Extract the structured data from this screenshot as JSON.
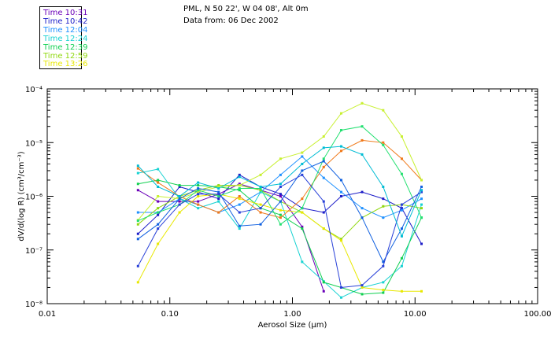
{
  "header": {
    "station": "PML, N 50 22', W 04 08', Alt 0m",
    "date": "Data from: 06 Dec 2002"
  },
  "chart_data": {
    "type": "line",
    "title": "",
    "xlabel": "Aerosol Size (μm)",
    "ylabel": "dV/d(log R) (cm³/cm⁻³)",
    "xscale": "log",
    "yscale": "log",
    "xlim": [
      0.01,
      100
    ],
    "ylim": [
      1e-08,
      0.0001
    ],
    "x_tick_labels": [
      "0.01",
      "0.10",
      "1.00",
      "10.00",
      "100.00"
    ],
    "y_tick_labels": [
      "10⁻⁸",
      "10⁻⁷",
      "10⁻⁶",
      "10⁻⁵",
      "10⁻⁴"
    ],
    "legend_position": "top-left",
    "grid": false,
    "series": [
      {
        "name": "Time 10:31",
        "color": "#6a00b8",
        "x": [
          0.055,
          0.08,
          0.12,
          0.17,
          0.25,
          0.37,
          0.55,
          0.8,
          1.2,
          1.8
        ],
        "y": [
          1.3e-06,
          8e-07,
          8e-07,
          8e-07,
          1.1e-06,
          1.7e-06,
          1.3e-06,
          1e-06,
          2.7e-07,
          1.7e-08
        ]
      },
      {
        "name": "Time 10:42",
        "color": "#1c1cc8",
        "x": [
          0.055,
          0.08,
          0.12,
          0.17,
          0.25,
          0.37,
          0.55,
          0.8,
          1.2,
          1.8,
          2.5,
          3.7,
          5.5,
          7.8,
          11.3
        ],
        "y": [
          2e-07,
          4.5e-07,
          1.5e-06,
          1.2e-06,
          9e-07,
          2.5e-06,
          1.5e-06,
          1.1e-06,
          6e-07,
          5e-07,
          1e-06,
          1.2e-06,
          9e-07,
          6e-07,
          1.3e-07
        ]
      },
      {
        "name": "Time 12:04",
        "color": "#1e90ff",
        "x": [
          0.055,
          0.08,
          0.12,
          0.17,
          0.25,
          0.37,
          0.55,
          0.8,
          1.2,
          1.8,
          2.5,
          3.7,
          5.5,
          7.8,
          11.3
        ],
        "y": [
          5e-07,
          5e-07,
          9e-07,
          7e-07,
          5e-07,
          7e-07,
          1.2e-06,
          2.5e-06,
          5.5e-06,
          2.2e-06,
          1.2e-06,
          6e-07,
          4e-07,
          5.5e-07,
          9e-07
        ]
      },
      {
        "name": "Time 12:24",
        "color": "#17d2d2",
        "x": [
          0.055,
          0.08,
          0.12,
          0.17,
          0.25,
          0.37,
          0.55,
          0.8,
          1.2,
          1.8,
          2.5,
          3.7,
          5.5,
          7.8,
          11.3
        ],
        "y": [
          2.7e-06,
          3.2e-06,
          9e-07,
          6e-07,
          8e-07,
          2.5e-07,
          1.2e-06,
          8e-07,
          6e-08,
          2.6e-08,
          1.3e-08,
          2e-08,
          2.5e-08,
          5e-08,
          7e-07
        ]
      },
      {
        "name": "Time 12:39",
        "color": "#10d050",
        "x": [
          0.055,
          0.08,
          0.12,
          0.17,
          0.25,
          0.37,
          0.55,
          0.8,
          1.2,
          1.8,
          2.5,
          3.7,
          5.5,
          7.8,
          11.3
        ],
        "y": [
          1.7e-06,
          2e-06,
          1.6e-06,
          1.6e-06,
          1.5e-06,
          1.3e-06,
          6e-07,
          4.5e-07,
          2.5e-07,
          2.5e-08,
          2e-08,
          1.5e-08,
          1.6e-08,
          7e-08,
          4e-07
        ]
      },
      {
        "name": "Time 12:59",
        "color": "#90d810",
        "x": [
          0.055,
          0.08,
          0.12,
          0.17,
          0.25,
          0.37,
          0.55,
          0.8,
          1.2,
          1.8,
          2.5,
          3.7,
          5.5,
          7.8,
          11.3
        ],
        "y": [
          3e-07,
          6e-07,
          1e-06,
          1.3e-06,
          1.6e-06,
          1.6e-06,
          1.3e-06,
          8e-07,
          5e-07,
          2.5e-07,
          1.6e-07,
          4e-07,
          6.5e-07,
          7e-07,
          6e-07
        ]
      },
      {
        "name": "Time 13:26",
        "color": "#e8e800",
        "x": [
          0.055,
          0.08,
          0.12,
          0.17,
          0.25,
          0.37,
          0.55,
          0.8,
          1.2,
          1.8,
          2.5,
          3.7,
          5.5,
          7.8,
          11.3
        ],
        "y": [
          2.5e-08,
          1.3e-07,
          5e-07,
          1e-06,
          1.1e-06,
          9e-07,
          7e-07,
          5.5e-07,
          5e-07,
          2.5e-07,
          1.5e-07,
          2e-08,
          1.8e-08,
          1.7e-08,
          1.7e-08
        ]
      },
      {
        "name": "",
        "color": "#f07818",
        "x": [
          0.055,
          0.08,
          0.12,
          0.17,
          0.25,
          0.37,
          0.55,
          0.8,
          1.2,
          1.8,
          2.5,
          3.7,
          5.5,
          7.8,
          11.3
        ],
        "y": [
          3.3e-06,
          1.8e-06,
          1e-06,
          7e-07,
          5e-07,
          1e-06,
          5e-07,
          4e-07,
          9e-07,
          3.5e-06,
          7e-06,
          1.1e-05,
          1e-05,
          5e-06,
          2e-06
        ]
      },
      {
        "name": "",
        "color": "#c8f030",
        "x": [
          0.055,
          0.08,
          0.12,
          0.17,
          0.25,
          0.37,
          0.55,
          0.8,
          1.2,
          1.8,
          2.5,
          3.7,
          5.5,
          7.8,
          11.3
        ],
        "y": [
          3.6e-07,
          1e-06,
          9e-07,
          1.2e-06,
          1.5e-06,
          1.6e-06,
          2.5e-06,
          5e-06,
          6.5e-06,
          1.3e-05,
          3.5e-05,
          5.4e-05,
          4e-05,
          1.3e-05,
          2e-06
        ]
      },
      {
        "name": "",
        "color": "#22e070",
        "x": [
          0.055,
          0.08,
          0.12,
          0.17,
          0.25,
          0.37,
          0.55,
          0.8,
          1.2,
          1.8,
          2.5,
          3.7,
          5.5,
          7.8,
          11.3
        ],
        "y": [
          3.5e-07,
          5e-07,
          7e-07,
          1.3e-06,
          1e-06,
          1.4e-06,
          1.4e-06,
          3e-07,
          6e-07,
          5e-06,
          1.7e-05,
          2e-05,
          9e-06,
          2.6e-06,
          4e-07
        ]
      },
      {
        "name": "",
        "color": "#1060e0",
        "x": [
          0.055,
          0.08,
          0.12,
          0.17,
          0.25,
          0.37,
          0.55,
          0.8,
          1.2,
          1.8,
          2.5,
          3.7,
          5.5,
          7.8,
          11.3
        ],
        "y": [
          1.6e-07,
          3e-07,
          9e-07,
          1.4e-06,
          1.2e-06,
          2.8e-07,
          3e-07,
          8e-07,
          3e-06,
          4.5e-06,
          2e-06,
          4e-07,
          6e-08,
          2.5e-07,
          1.5e-06
        ]
      },
      {
        "name": "",
        "color": "#2840d8",
        "x": [
          0.055,
          0.08,
          0.12,
          0.17,
          0.25,
          0.37,
          0.55,
          0.8,
          1.2,
          1.8,
          2.5,
          3.7,
          5.5,
          7.8,
          11.3
        ],
        "y": [
          5e-08,
          2.5e-07,
          7e-07,
          1.1e-06,
          1.1e-06,
          5e-07,
          6e-07,
          1.5e-06,
          2.5e-06,
          8e-07,
          2e-08,
          2.2e-08,
          5e-08,
          7e-07,
          1.2e-06
        ]
      },
      {
        "name": "",
        "color": "#00bcd4",
        "x": [
          0.055,
          0.08,
          0.12,
          0.17,
          0.25,
          0.37,
          0.55,
          0.8,
          1.2,
          1.8,
          2.5,
          3.7,
          5.5,
          7.8,
          11.3
        ],
        "y": [
          3.7e-06,
          1.5e-06,
          1e-06,
          1.8e-06,
          1.4e-06,
          2.3e-06,
          1.5e-06,
          1.7e-06,
          4e-06,
          8e-06,
          8.5e-06,
          6e-06,
          1.5e-06,
          1.8e-07,
          1.3e-06
        ]
      }
    ]
  }
}
